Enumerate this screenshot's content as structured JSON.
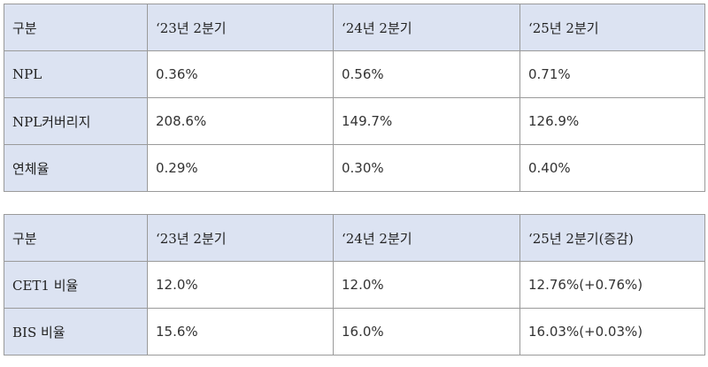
{
  "table_quality": {
    "headers": [
      "구분",
      "‘23년 2분기",
      "‘24년 2분기",
      "‘25년 2분기"
    ],
    "rows": [
      {
        "label": "NPL",
        "values": [
          "0.36%",
          "0.56%",
          "0.71%"
        ]
      },
      {
        "label": "NPL커버리지",
        "values": [
          "208.6%",
          "149.7%",
          "126.9%"
        ]
      },
      {
        "label": "연체율",
        "values": [
          "0.29%",
          "0.30%",
          "0.40%"
        ]
      }
    ]
  },
  "table_capital": {
    "headers": [
      "구분",
      "‘23년 2분기",
      "‘24년 2분기",
      "‘25년 2분기(증감)"
    ],
    "rows": [
      {
        "label": "CET1 비율",
        "values": [
          "12.0%",
          "12.0%",
          "12.76%(+0.76%)"
        ]
      },
      {
        "label": "BIS 비율",
        "values": [
          "15.6%",
          "16.0%",
          "16.03%(+0.03%)"
        ]
      }
    ]
  },
  "colors": {
    "header_bg": "#dce3f2",
    "border": "#9a9a9a"
  }
}
